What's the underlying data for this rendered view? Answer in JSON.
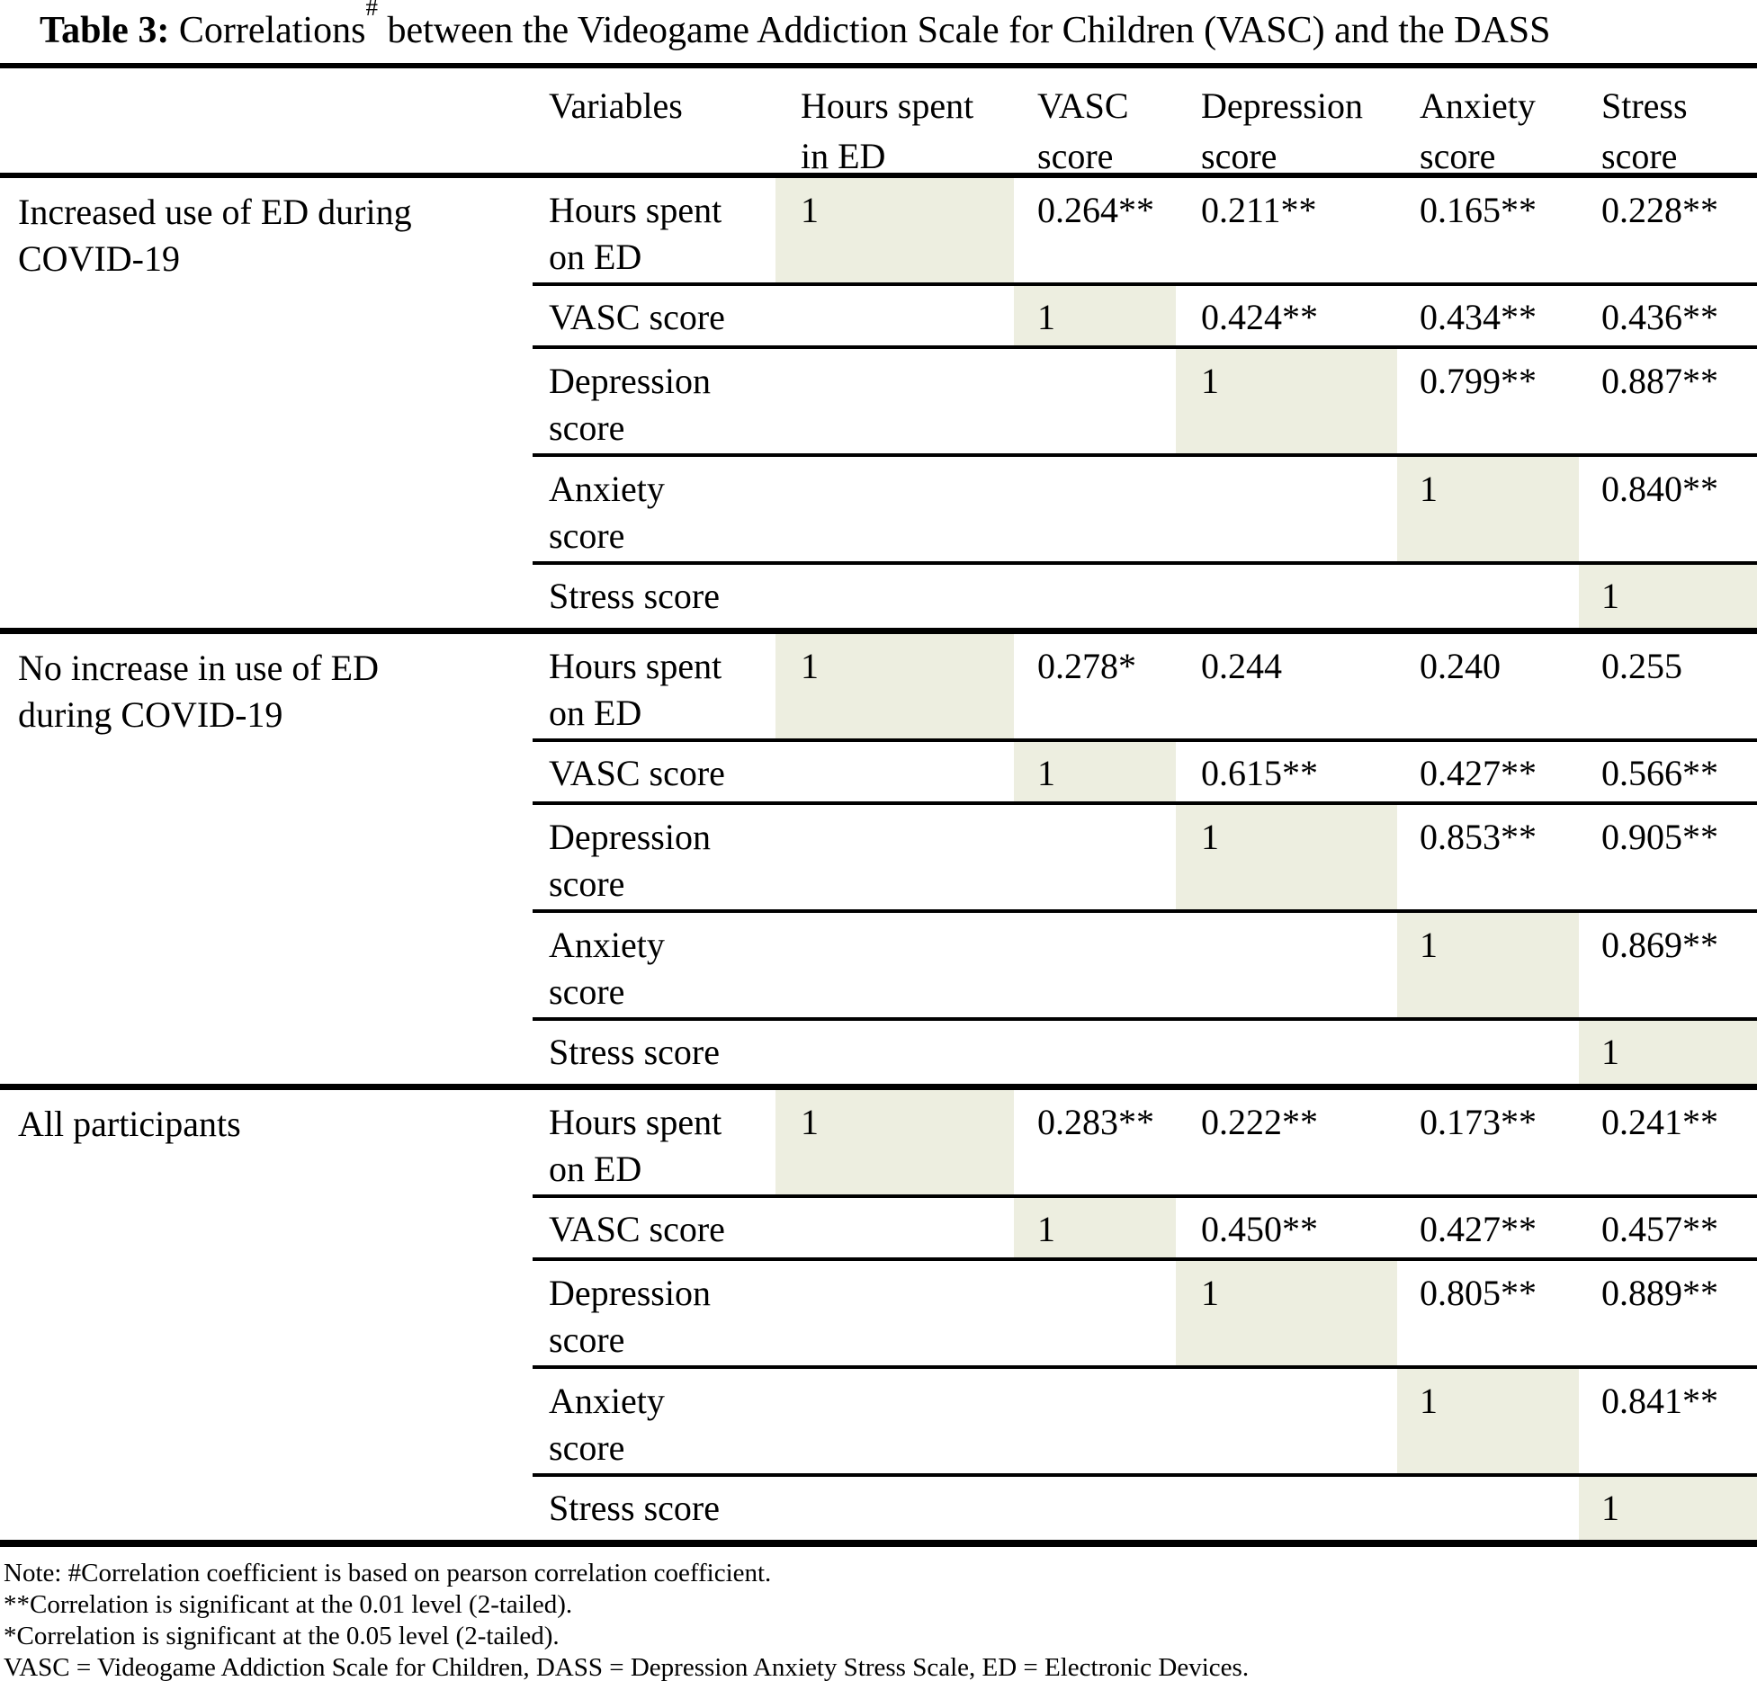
{
  "title": {
    "bold": "Table 3:",
    "rest1": " Correlations",
    "sup": "#",
    "rest2": " between the Videogame Addiction Scale for Children (VASC) and the DASS"
  },
  "header": {
    "variables": "Variables",
    "cols": [
      {
        "line1": "Hours spent",
        "line2": "in ED"
      },
      {
        "line1": "VASC",
        "line2": "score"
      },
      {
        "line1": "Depression",
        "line2": "score"
      },
      {
        "line1": "Anxiety",
        "line2": "score"
      },
      {
        "line1": "Stress",
        "line2": "score"
      }
    ]
  },
  "groups": [
    {
      "label_line1": "Increased use of ED during",
      "label_line2": "COVID-19",
      "rows": [
        {
          "label_line1": "Hours spent",
          "label_line2": "on ED",
          "values": [
            "1",
            "0.264**",
            "0.211**",
            "0.165**",
            "0.228**"
          ]
        },
        {
          "label_line1": "VASC score",
          "values": [
            "",
            "1",
            "0.424**",
            "0.434**",
            "0.436**"
          ]
        },
        {
          "label_line1": "Depression",
          "label_line2": "score",
          "values": [
            "",
            "",
            "1",
            "0.799**",
            "0.887**"
          ]
        },
        {
          "label_line1": "Anxiety",
          "label_line2": "score",
          "values": [
            "",
            "",
            "",
            "1",
            "0.840**"
          ]
        },
        {
          "label_line1": "Stress score",
          "values": [
            "",
            "",
            "",
            "",
            "1"
          ]
        }
      ]
    },
    {
      "label_line1": "No increase in use of ED",
      "label_line2": "during COVID-19",
      "rows": [
        {
          "label_line1": "Hours spent",
          "label_line2": "on ED",
          "values": [
            "1",
            "0.278*",
            "0.244",
            "0.240",
            "0.255"
          ]
        },
        {
          "label_line1": "VASC score",
          "values": [
            "",
            "1",
            "0.615**",
            "0.427**",
            "0.566**"
          ]
        },
        {
          "label_line1": "Depression",
          "label_line2": "score",
          "values": [
            "",
            "",
            "1",
            "0.853**",
            "0.905**"
          ]
        },
        {
          "label_line1": "Anxiety",
          "label_line2": "score",
          "values": [
            "",
            "",
            "",
            "1",
            "0.869**"
          ]
        },
        {
          "label_line1": "Stress score",
          "values": [
            "",
            "",
            "",
            "",
            "1"
          ]
        }
      ]
    },
    {
      "label_line1": "All participants",
      "rows": [
        {
          "label_line1": "Hours spent",
          "label_line2": "on ED",
          "values": [
            "1",
            "0.283**",
            "0.222**",
            "0.173**",
            "0.241**"
          ]
        },
        {
          "label_line1": "VASC score",
          "values": [
            "",
            "1",
            "0.450**",
            "0.427**",
            "0.457**"
          ]
        },
        {
          "label_line1": "Depression",
          "label_line2": "score",
          "values": [
            "",
            "",
            "1",
            "0.805**",
            "0.889**"
          ]
        },
        {
          "label_line1": "Anxiety",
          "label_line2": "score",
          "values": [
            "",
            "",
            "",
            "1",
            "0.841**"
          ]
        },
        {
          "label_line1": "Stress score",
          "values": [
            "",
            "",
            "",
            "",
            "1"
          ]
        }
      ]
    }
  ],
  "notes": [
    "Note: #Correlation coefficient is based on pearson correlation coefficient.",
    "**Correlation is significant at the 0.01 level (2-tailed).",
    "*Correlation is significant at the 0.05 level (2-tailed).",
    "VASC = Videogame Addiction Scale for Children, DASS = Depression Anxiety Stress Scale, ED = Electronic Devices."
  ],
  "colors": {
    "diagonal_shade": "#EDEEE0",
    "rule": "#000000",
    "text": "#000000",
    "background": "#FFFFFF"
  }
}
